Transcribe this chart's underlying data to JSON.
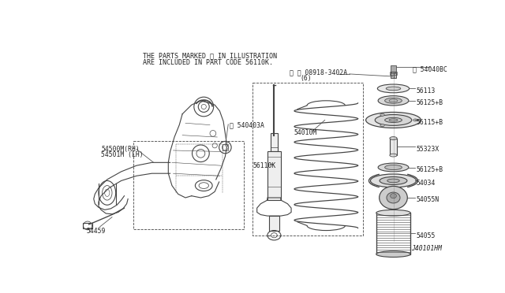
{
  "bg_color": "#ffffff",
  "fig_width": 6.4,
  "fig_height": 3.72,
  "header_line1": "THE PARTS MARKED ※ IN ILLUSTRATION",
  "header_line2": "ARE INCLUDED IN PART CODE 56110K.",
  "footer": "J40101HM",
  "line_color": "#444444",
  "font_size": 5.8,
  "header_font_size": 6.0
}
